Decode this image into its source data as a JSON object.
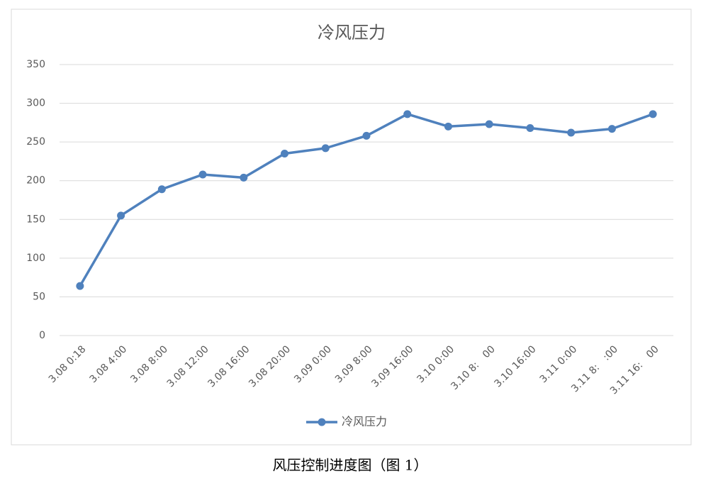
{
  "chart_data": {
    "type": "line",
    "title": "冷风压力",
    "categories": [
      "3.08 0:18",
      "3.08 4:00",
      "3.08 8:00",
      "3.08 12:00",
      "3.08 16:00",
      "3.08 20:00",
      "3.09 0:00",
      "3.09 8:00",
      "3.09 16:00",
      "3.10 0:00",
      "3.10 8:　00",
      "3.10 16:00",
      "3.11 0:00",
      "3.11 8:　:00",
      "3.11 16:　00"
    ],
    "series": [
      {
        "name": "冷风压力",
        "color": "#4f81bd",
        "values": [
          64,
          155,
          189,
          208,
          204,
          235,
          242,
          258,
          286,
          270,
          273,
          268,
          262,
          267,
          286
        ]
      }
    ],
    "ylim": [
      0,
      350
    ],
    "yticks": [
      0,
      50,
      100,
      150,
      200,
      250,
      300,
      350
    ],
    "grid": true,
    "legend": "bottom"
  },
  "caption": "风压控制进度图（图 1）"
}
